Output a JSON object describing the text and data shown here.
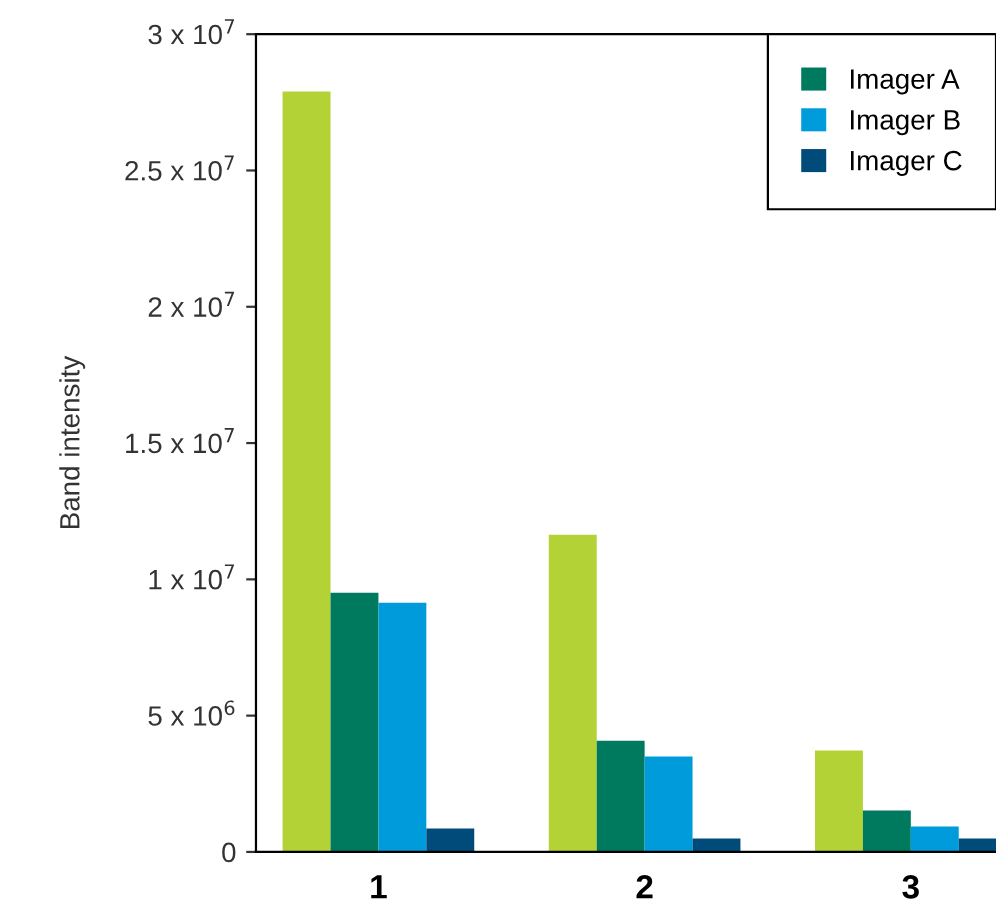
{
  "chart_data": {
    "type": "bar",
    "ylabel": "Band intensity",
    "categories": [
      "1",
      "2",
      "3"
    ],
    "series": [
      {
        "color": "#b3d235",
        "values": [
          27900000,
          11640000,
          3720000
        ]
      },
      {
        "name": "Imager A",
        "color": "#007a5e",
        "values": [
          9510000,
          4080000,
          1520000
        ]
      },
      {
        "name": "Imager B",
        "color": "#009bdb",
        "values": [
          9140000,
          3500000,
          930000
        ]
      },
      {
        "name": "Imager C",
        "color": "#004b7a",
        "values": [
          860000,
          490000,
          490000
        ]
      }
    ],
    "ylim": [
      0,
      30000000
    ],
    "yticks": [
      0,
      {
        "value": 5000000,
        "label": "5 x 10$^{6}$"
      },
      {
        "value": 10000000,
        "label": "1 x 10$^{7}$"
      },
      {
        "value": 15000000,
        "label": "1.5 x 10$^{7}$"
      },
      {
        "value": 20000000,
        "label": "2 x 10$^{7}$"
      },
      {
        "value": 25000000,
        "label": "2.5 x 10$^{7}$"
      },
      {
        "value": 30000000,
        "label": "3 x 10$^{7}$"
      }
    ],
    "legend": "top right",
    "grid": false
  }
}
